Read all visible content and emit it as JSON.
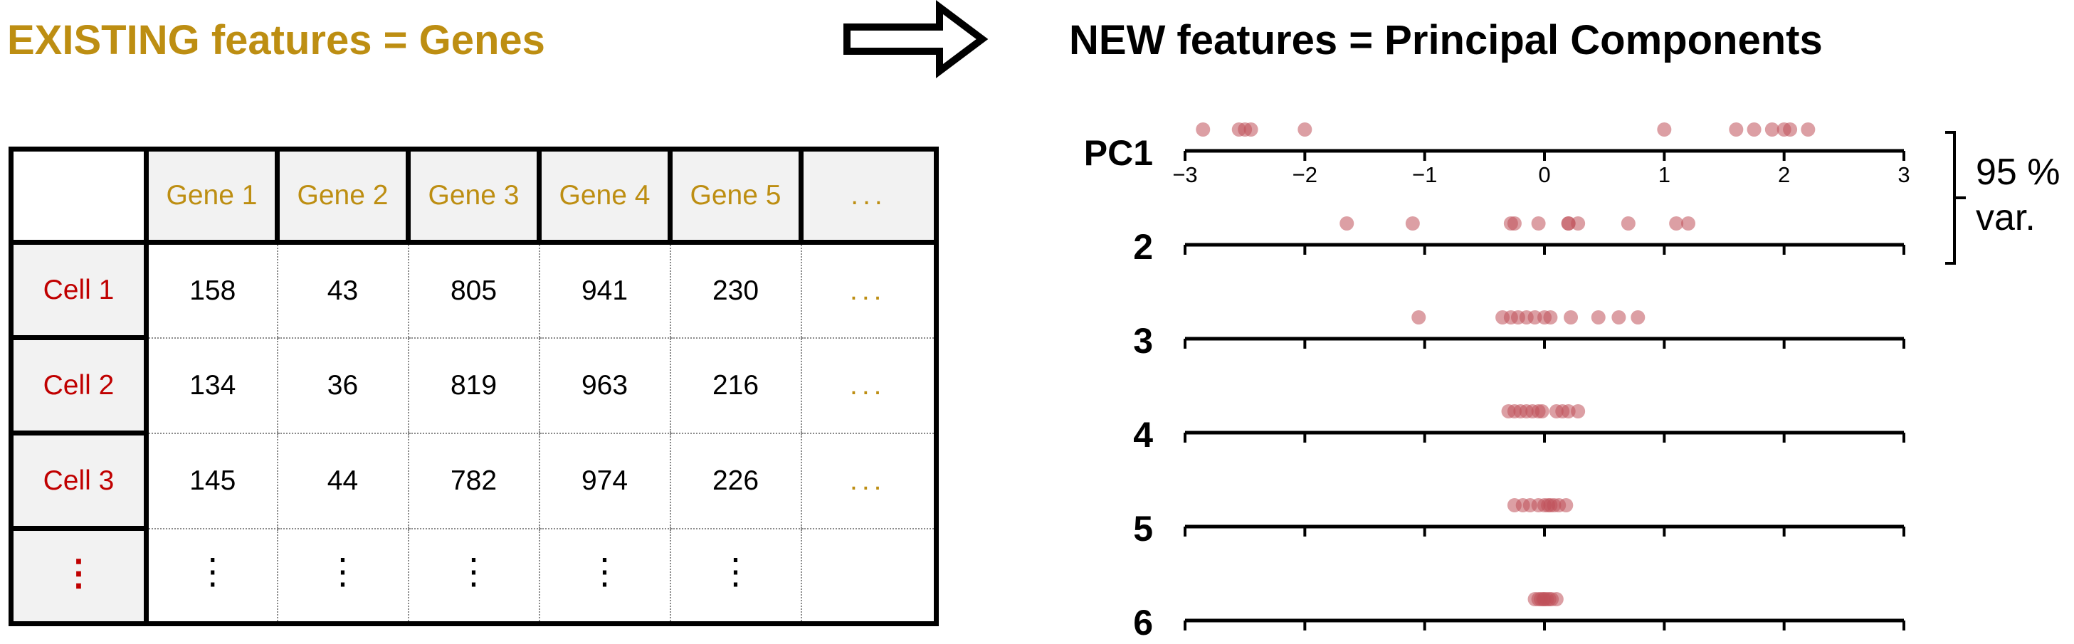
{
  "existing_title": "EXISTING features = Genes",
  "new_title": "NEW features = Principal Components",
  "table": {
    "col_headers": [
      "Gene 1",
      "Gene 2",
      "Gene 3",
      "Gene 4",
      "Gene 5",
      "..."
    ],
    "rows": [
      {
        "label": "Cell 1",
        "values": [
          "158",
          "43",
          "805",
          "941",
          "230"
        ],
        "more": "..."
      },
      {
        "label": "Cell 2",
        "values": [
          "134",
          "36",
          "819",
          "963",
          "216"
        ],
        "more": "..."
      },
      {
        "label": "Cell 3",
        "values": [
          "145",
          "44",
          "782",
          "974",
          "226"
        ],
        "more": "..."
      }
    ],
    "vdots": "⋮"
  },
  "pc_axes": {
    "labels": [
      "PC1",
      "2",
      "3",
      "4",
      "5",
      "6"
    ],
    "tick_labels": [
      "−3",
      "−2",
      "−1",
      "0",
      "1",
      "2",
      "3"
    ],
    "ticks": [
      -3,
      -2,
      -1,
      0,
      1,
      2,
      3
    ],
    "xlim": [
      -3,
      3
    ],
    "point_color": "#c0505a",
    "points": [
      [
        -2.85,
        -2.55,
        -2.5,
        -2.45,
        -2.0,
        1.0,
        1.6,
        1.75,
        1.9,
        2.0,
        2.05,
        2.2
      ],
      [
        -1.65,
        -1.1,
        -0.28,
        -0.25,
        -0.05,
        0.2,
        0.2,
        0.28,
        0.7,
        1.1,
        1.2
      ],
      [
        -1.05,
        -0.35,
        -0.28,
        -0.22,
        -0.15,
        -0.08,
        0.0,
        0.05,
        0.22,
        0.45,
        0.62,
        0.78
      ],
      [
        -0.3,
        -0.25,
        -0.2,
        -0.15,
        -0.1,
        -0.05,
        -0.02,
        0.1,
        0.15,
        0.2,
        0.28
      ],
      [
        -0.25,
        -0.18,
        -0.12,
        -0.05,
        0.0,
        0.03,
        0.05,
        0.08,
        0.12,
        0.18
      ],
      [
        -0.08,
        -0.05,
        -0.03,
        -0.01,
        0.0,
        0.02,
        0.04,
        0.06,
        0.1
      ]
    ]
  },
  "variance_label": {
    "line1": "95 %",
    "line2": "var."
  }
}
